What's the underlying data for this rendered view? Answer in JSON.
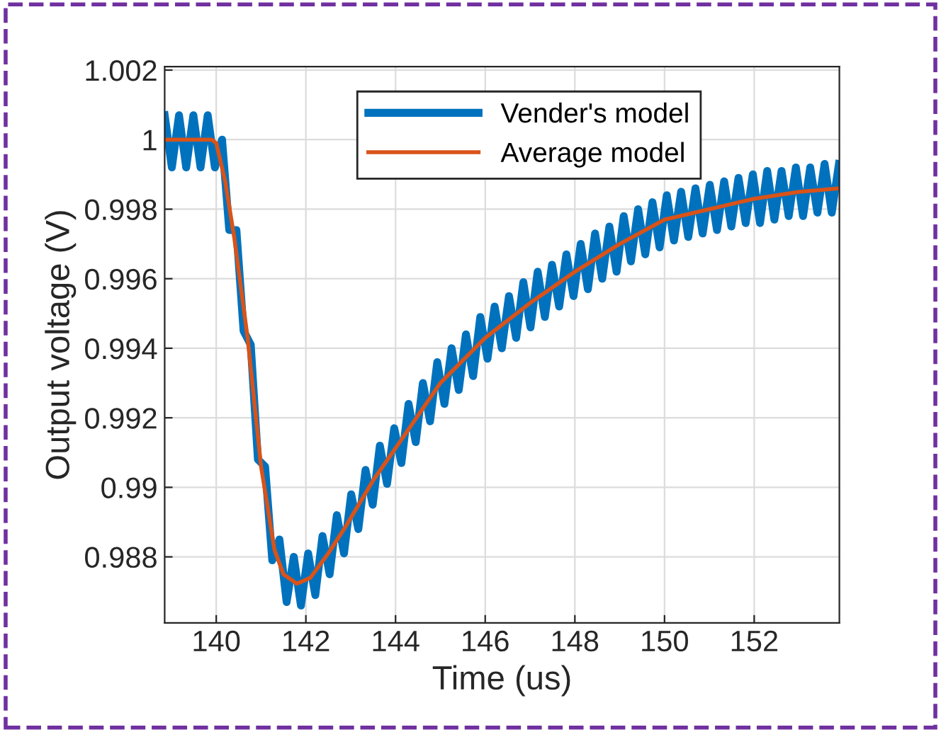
{
  "chart_data": {
    "type": "line",
    "xlabel": "Time (us)",
    "ylabel": "Output voltage (V)",
    "xlim": [
      138.85,
      153.9
    ],
    "ylim": [
      0.9861,
      1.0021
    ],
    "xticks": [
      140,
      142,
      144,
      146,
      148,
      150,
      152
    ],
    "yticks": [
      0.988,
      0.99,
      0.992,
      0.994,
      0.996,
      0.998,
      1,
      1.002
    ],
    "grid": true,
    "legend": "top",
    "marker": "none",
    "line_style": "solid",
    "series": [
      {
        "name": "Vender's model",
        "color": "#0072bd",
        "x": [
          138.85,
          139.01,
          139.17,
          139.33,
          139.49,
          139.65,
          139.81,
          139.97,
          140.13,
          140.29,
          140.45,
          140.61,
          140.77,
          140.93,
          141.09,
          141.25,
          141.41,
          141.57,
          141.73,
          141.89,
          142.05,
          142.21,
          142.37,
          142.53,
          142.69,
          142.85,
          143.01,
          143.17,
          143.33,
          143.49,
          143.65,
          143.81,
          143.97,
          144.13,
          144.29,
          144.45,
          144.61,
          144.77,
          144.93,
          145.09,
          145.25,
          145.41,
          145.57,
          145.73,
          145.89,
          146.05,
          146.21,
          146.37,
          146.53,
          146.69,
          146.85,
          147.01,
          147.17,
          147.33,
          147.49,
          147.65,
          147.81,
          147.97,
          148.13,
          148.29,
          148.45,
          148.61,
          148.77,
          148.93,
          149.09,
          149.25,
          149.41,
          149.57,
          149.73,
          149.89,
          150.05,
          150.21,
          150.37,
          150.53,
          150.69,
          150.85,
          151.01,
          151.17,
          151.33,
          151.49,
          151.65,
          151.81,
          151.97,
          152.13,
          152.29,
          152.45,
          152.61,
          152.77,
          152.93,
          153.09,
          153.25,
          153.41,
          153.57,
          153.73,
          153.89
        ],
        "values": [
          1.0007,
          0.9992,
          1.0007,
          0.9992,
          1.0007,
          0.9992,
          1.0007,
          0.9992,
          1.0,
          0.9974,
          0.9974,
          0.9945,
          0.9941,
          0.9908,
          0.9906,
          0.9879,
          0.9885,
          0.9867,
          0.988,
          0.9866,
          0.9881,
          0.9869,
          0.9886,
          0.9875,
          0.9892,
          0.9881,
          0.9898,
          0.9888,
          0.9905,
          0.9895,
          0.9912,
          0.9901,
          0.9917,
          0.9907,
          0.9924,
          0.9913,
          0.993,
          0.9919,
          0.9936,
          0.9924,
          0.994,
          0.9928,
          0.9944,
          0.9932,
          0.9949,
          0.9937,
          0.9952,
          0.994,
          0.9955,
          0.9943,
          0.9959,
          0.9946,
          0.9962,
          0.9949,
          0.9964,
          0.9952,
          0.9967,
          0.9955,
          0.997,
          0.9957,
          0.9973,
          0.996,
          0.9975,
          0.9962,
          0.9978,
          0.9965,
          0.998,
          0.9967,
          0.9982,
          0.9969,
          0.9984,
          0.9971,
          0.9985,
          0.9972,
          0.9986,
          0.9973,
          0.9987,
          0.9974,
          0.9988,
          0.9975,
          0.9989,
          0.9976,
          0.999,
          0.9976,
          0.9991,
          0.9977,
          0.9991,
          0.9978,
          0.9992,
          0.9978,
          0.9992,
          0.9979,
          0.9993,
          0.9979,
          0.9993
        ]
      },
      {
        "name": "Average model",
        "color": "#d95319",
        "x": [
          138.85,
          139.9,
          140.0,
          140.2,
          140.4,
          140.7,
          141.0,
          141.3,
          141.5,
          141.8,
          142.1,
          142.5,
          142.9,
          143.5,
          144.2,
          145.0,
          146.0,
          147.0,
          148.0,
          149.0,
          150.0,
          151.0,
          152.0,
          153.0,
          153.9
        ],
        "values": [
          1.0,
          1.0,
          0.9999,
          0.9988,
          0.9972,
          0.9943,
          0.9906,
          0.9882,
          0.9875,
          0.98723,
          0.9874,
          0.9881,
          0.9889,
          0.9902,
          0.9915,
          0.993,
          0.9943,
          0.9953,
          0.9962,
          0.997,
          0.9977,
          0.998,
          0.9983,
          0.9985,
          0.9986
        ]
      }
    ]
  }
}
